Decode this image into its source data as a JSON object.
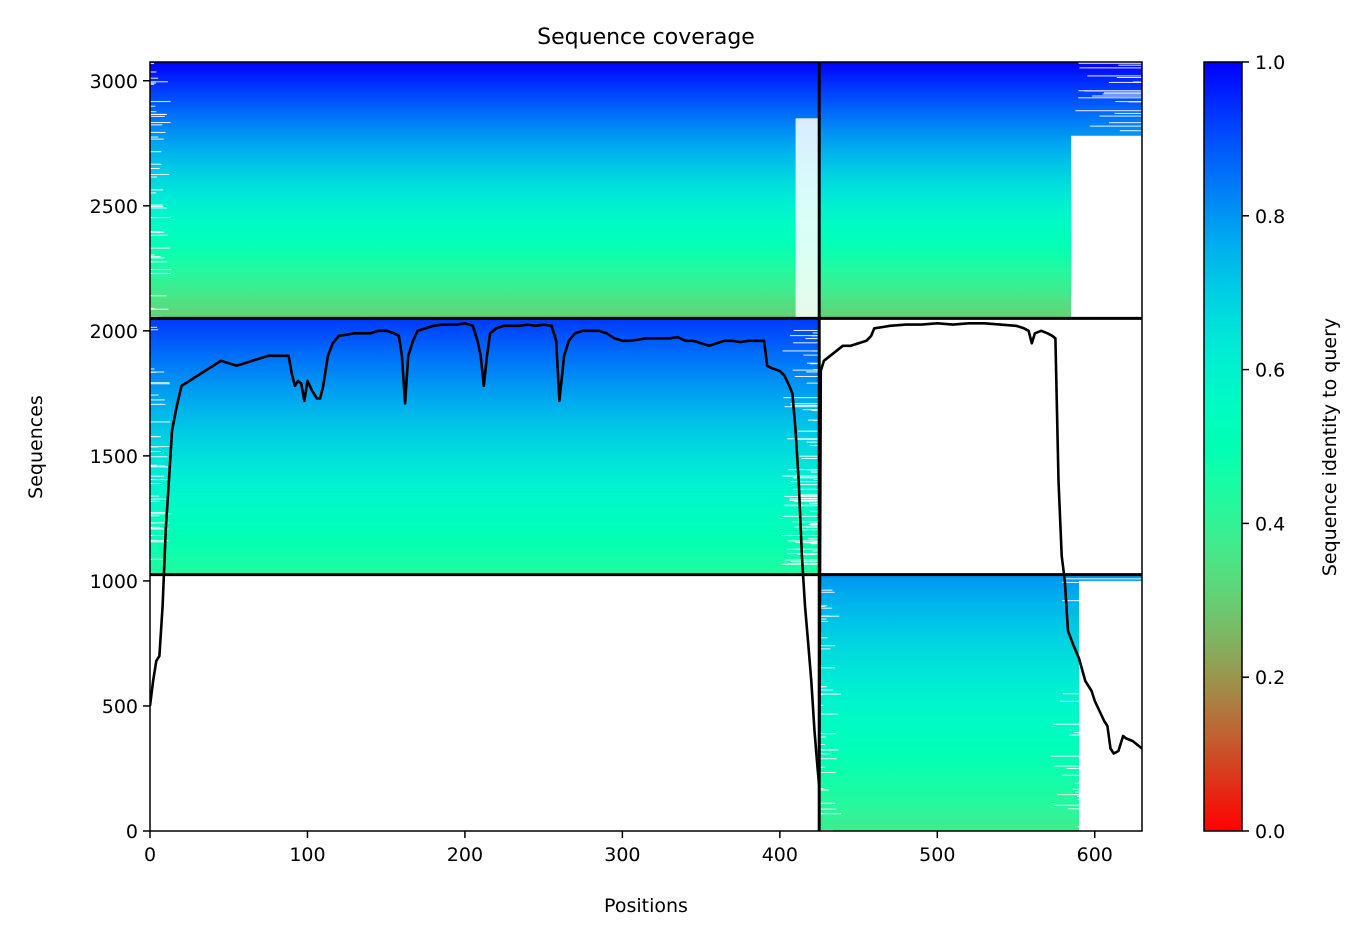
{
  "chart_data": {
    "type": "heatmap",
    "title": "Sequence coverage",
    "xlabel": "Positions",
    "ylabel": "Sequences",
    "xlim": [
      0,
      630
    ],
    "ylim": [
      0,
      3075
    ],
    "x_ticks": [
      0,
      100,
      200,
      300,
      400,
      500,
      600
    ],
    "y_ticks": [
      0,
      500,
      1000,
      1500,
      2000,
      2500,
      3000
    ],
    "grid": false,
    "colorbar": {
      "label": "Sequence identity to query",
      "colormap": "rainbow_r",
      "range": [
        0.0,
        1.0
      ],
      "ticks": [
        0.0,
        0.2,
        0.4,
        0.6,
        0.8,
        1.0
      ],
      "tick_labels": [
        "0.0",
        "0.2",
        "0.4",
        "0.6",
        "0.8",
        "1.0"
      ]
    },
    "chain_boundaries": {
      "x_positions": [
        425
      ],
      "y_sequences": [
        1025,
        2050
      ]
    },
    "msa_blocks": [
      {
        "name": "paired",
        "x_range": [
          0,
          630
        ],
        "seq_range": [
          2050,
          3075
        ],
        "identity_bottom": 0.3,
        "identity_top": 1.0
      },
      {
        "name": "chain-A-unpaired",
        "x_range": [
          0,
          425
        ],
        "seq_range": [
          1025,
          2050
        ],
        "identity_bottom": 0.43,
        "identity_top": 0.93
      },
      {
        "name": "chain-B-unpaired",
        "x_range": [
          425,
          630
        ],
        "seq_range": [
          0,
          1025
        ],
        "identity_bottom": 0.38,
        "identity_top": 0.8
      }
    ],
    "coverage_line": {
      "name": "coverage",
      "color": "#000000",
      "points": [
        [
          0,
          500
        ],
        [
          2,
          600
        ],
        [
          4,
          680
        ],
        [
          6,
          700
        ],
        [
          8,
          900
        ],
        [
          10,
          1200
        ],
        [
          12,
          1400
        ],
        [
          14,
          1600
        ],
        [
          17,
          1700
        ],
        [
          20,
          1780
        ],
        [
          25,
          1800
        ],
        [
          30,
          1820
        ],
        [
          35,
          1840
        ],
        [
          40,
          1860
        ],
        [
          45,
          1880
        ],
        [
          50,
          1870
        ],
        [
          55,
          1860
        ],
        [
          60,
          1870
        ],
        [
          65,
          1880
        ],
        [
          70,
          1890
        ],
        [
          75,
          1900
        ],
        [
          80,
          1900
        ],
        [
          85,
          1900
        ],
        [
          88,
          1900
        ],
        [
          90,
          1830
        ],
        [
          92,
          1780
        ],
        [
          94,
          1800
        ],
        [
          96,
          1790
        ],
        [
          98,
          1720
        ],
        [
          100,
          1800
        ],
        [
          103,
          1760
        ],
        [
          106,
          1730
        ],
        [
          108,
          1730
        ],
        [
          110,
          1780
        ],
        [
          113,
          1900
        ],
        [
          116,
          1950
        ],
        [
          120,
          1980
        ],
        [
          125,
          1985
        ],
        [
          130,
          1990
        ],
        [
          135,
          1990
        ],
        [
          140,
          1990
        ],
        [
          145,
          2000
        ],
        [
          150,
          2000
        ],
        [
          155,
          1990
        ],
        [
          158,
          1980
        ],
        [
          160,
          1900
        ],
        [
          162,
          1710
        ],
        [
          164,
          1900
        ],
        [
          167,
          1960
        ],
        [
          170,
          2000
        ],
        [
          175,
          2010
        ],
        [
          180,
          2020
        ],
        [
          185,
          2025
        ],
        [
          190,
          2025
        ],
        [
          195,
          2025
        ],
        [
          200,
          2030
        ],
        [
          205,
          2020
        ],
        [
          208,
          1960
        ],
        [
          210,
          1900
        ],
        [
          212,
          1780
        ],
        [
          214,
          1900
        ],
        [
          216,
          1990
        ],
        [
          220,
          2010
        ],
        [
          225,
          2020
        ],
        [
          230,
          2020
        ],
        [
          235,
          2020
        ],
        [
          240,
          2025
        ],
        [
          245,
          2020
        ],
        [
          250,
          2025
        ],
        [
          255,
          2020
        ],
        [
          258,
          1960
        ],
        [
          260,
          1720
        ],
        [
          263,
          1900
        ],
        [
          266,
          1960
        ],
        [
          270,
          1990
        ],
        [
          275,
          2000
        ],
        [
          280,
          2000
        ],
        [
          285,
          2000
        ],
        [
          290,
          1990
        ],
        [
          295,
          1970
        ],
        [
          300,
          1960
        ],
        [
          305,
          1960
        ],
        [
          310,
          1965
        ],
        [
          315,
          1970
        ],
        [
          320,
          1970
        ],
        [
          325,
          1970
        ],
        [
          330,
          1970
        ],
        [
          335,
          1975
        ],
        [
          340,
          1960
        ],
        [
          345,
          1960
        ],
        [
          350,
          1950
        ],
        [
          355,
          1940
        ],
        [
          360,
          1950
        ],
        [
          365,
          1960
        ],
        [
          370,
          1960
        ],
        [
          375,
          1955
        ],
        [
          380,
          1960
        ],
        [
          385,
          1960
        ],
        [
          390,
          1960
        ],
        [
          392,
          1860
        ],
        [
          395,
          1850
        ],
        [
          400,
          1840
        ],
        [
          403,
          1820
        ],
        [
          406,
          1780
        ],
        [
          408,
          1750
        ],
        [
          410,
          1600
        ],
        [
          412,
          1400
        ],
        [
          414,
          1100
        ],
        [
          416,
          900
        ],
        [
          418,
          750
        ],
        [
          420,
          600
        ],
        [
          422,
          400
        ],
        [
          424,
          250
        ],
        [
          425,
          180
        ],
        [
          426,
          1840
        ],
        [
          428,
          1880
        ],
        [
          432,
          1900
        ],
        [
          436,
          1920
        ],
        [
          440,
          1940
        ],
        [
          445,
          1940
        ],
        [
          450,
          1950
        ],
        [
          455,
          1960
        ],
        [
          458,
          1980
        ],
        [
          460,
          2010
        ],
        [
          465,
          2015
        ],
        [
          470,
          2020
        ],
        [
          480,
          2025
        ],
        [
          490,
          2025
        ],
        [
          500,
          2030
        ],
        [
          510,
          2025
        ],
        [
          520,
          2030
        ],
        [
          530,
          2030
        ],
        [
          540,
          2025
        ],
        [
          550,
          2020
        ],
        [
          555,
          2010
        ],
        [
          558,
          2000
        ],
        [
          560,
          1950
        ],
        [
          562,
          1990
        ],
        [
          566,
          2000
        ],
        [
          570,
          1990
        ],
        [
          573,
          1980
        ],
        [
          575,
          1970
        ],
        [
          577,
          1400
        ],
        [
          579,
          1100
        ],
        [
          581,
          1000
        ],
        [
          583,
          800
        ],
        [
          586,
          750
        ],
        [
          590,
          690
        ],
        [
          594,
          600
        ],
        [
          598,
          560
        ],
        [
          600,
          520
        ],
        [
          603,
          480
        ],
        [
          606,
          440
        ],
        [
          608,
          420
        ],
        [
          610,
          330
        ],
        [
          612,
          310
        ],
        [
          615,
          320
        ],
        [
          618,
          380
        ],
        [
          620,
          370
        ],
        [
          624,
          360
        ],
        [
          628,
          340
        ],
        [
          630,
          330
        ]
      ]
    }
  }
}
